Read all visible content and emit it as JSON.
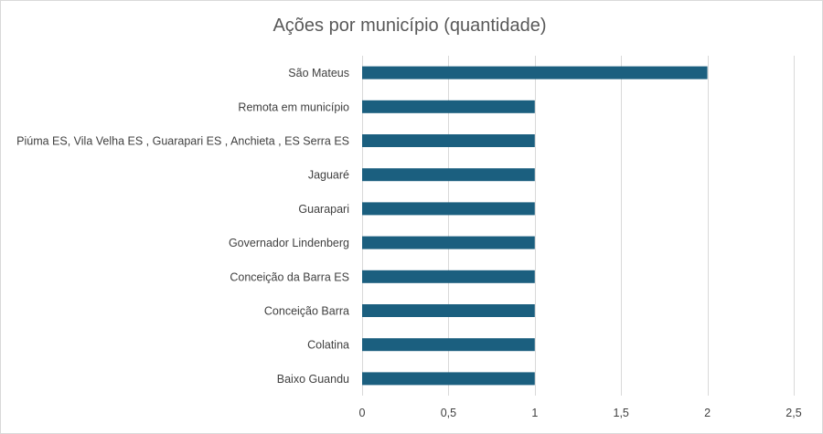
{
  "chart_data": {
    "type": "bar",
    "orientation": "horizontal",
    "title": "Ações por município (quantidade)",
    "xlabel": "",
    "ylabel": "",
    "categories": [
      "São Mateus",
      "Remota em município",
      "Piúma ES, Vila Velha ES , Guarapari ES , Anchieta ,  ES Serra ES",
      "Jaguaré",
      "Guarapari",
      "Governador Lindenberg",
      "Conceição da Barra ES",
      "Conceição Barra",
      "Colatina",
      "Baixo Guandu"
    ],
    "values": [
      2,
      1,
      1,
      1,
      1,
      1,
      1,
      1,
      1,
      1
    ],
    "xlim": [
      0,
      2.5
    ],
    "xticks": [
      0,
      0.5,
      1,
      1.5,
      2,
      2.5
    ],
    "xtick_labels": [
      "0",
      "0,5",
      "1",
      "1,5",
      "2",
      "2,5"
    ],
    "grid": true,
    "legend": "none",
    "colors": {
      "bar": "#1b5f7f",
      "grid": "#d9d9d9",
      "text": "#404040",
      "title": "#595959"
    }
  }
}
